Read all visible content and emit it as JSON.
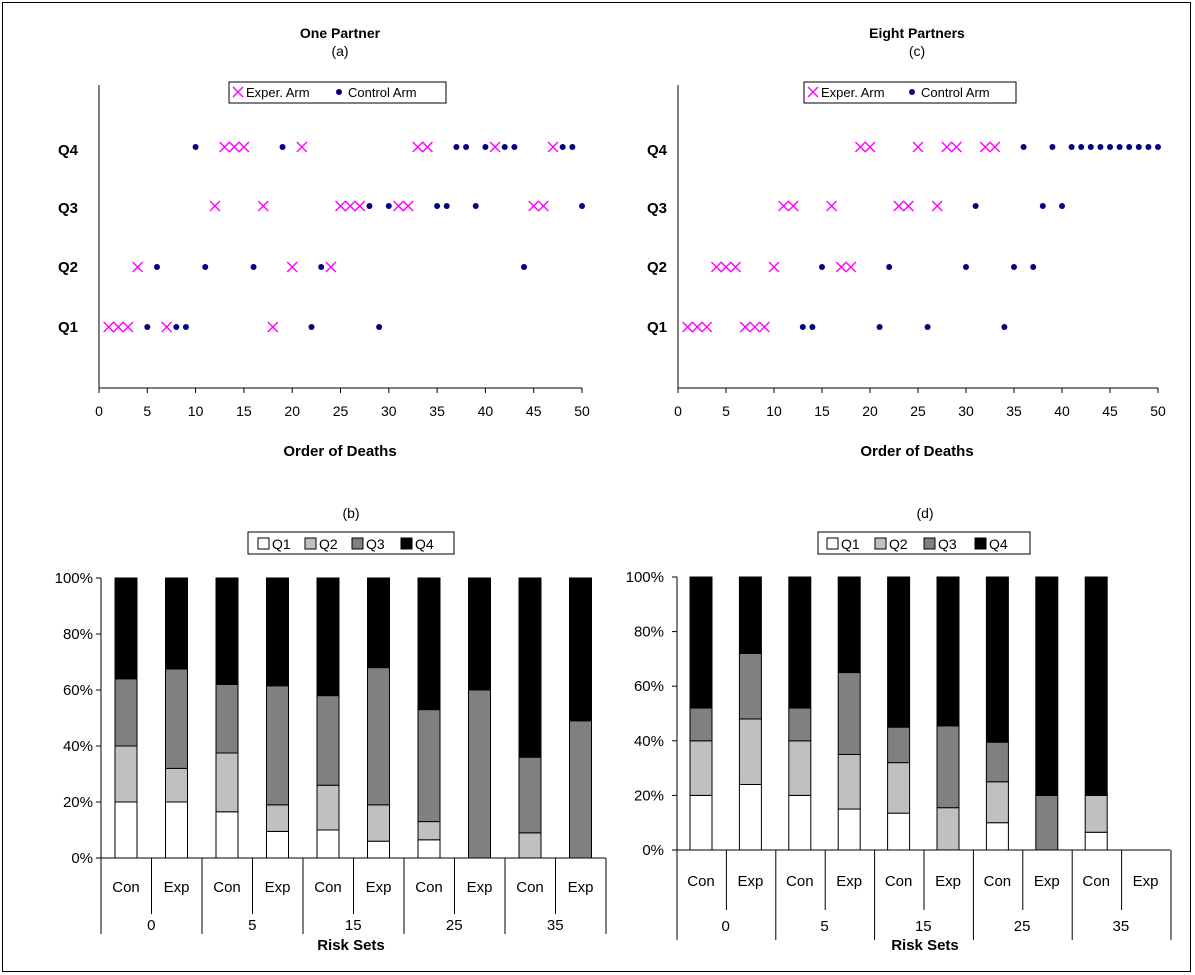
{
  "chart_data": [
    {
      "type": "scatter",
      "title": "One Partner",
      "subtitle": "(a)",
      "xlabel": "Order of Deaths",
      "ylabel": "",
      "xlim": [
        0,
        50
      ],
      "x_ticks": [
        "0",
        "5",
        "10",
        "15",
        "20",
        "25",
        "30",
        "35",
        "40",
        "45",
        "50"
      ],
      "categories": [
        "Q1",
        "Q2",
        "Q3",
        "Q4"
      ],
      "legend": "top",
      "series": [
        {
          "name": "Exper. Arm",
          "marker": "x",
          "color": "#ff00ff",
          "points": [
            {
              "x": 1,
              "y": "Q1"
            },
            {
              "x": 2,
              "y": "Q1"
            },
            {
              "x": 3,
              "y": "Q1"
            },
            {
              "x": 7,
              "y": "Q1"
            },
            {
              "x": 18,
              "y": "Q1"
            },
            {
              "x": 4,
              "y": "Q2"
            },
            {
              "x": 20,
              "y": "Q2"
            },
            {
              "x": 24,
              "y": "Q2"
            },
            {
              "x": 12,
              "y": "Q3"
            },
            {
              "x": 17,
              "y": "Q3"
            },
            {
              "x": 25,
              "y": "Q3"
            },
            {
              "x": 26,
              "y": "Q3"
            },
            {
              "x": 27,
              "y": "Q3"
            },
            {
              "x": 31,
              "y": "Q3"
            },
            {
              "x": 32,
              "y": "Q3"
            },
            {
              "x": 45,
              "y": "Q3"
            },
            {
              "x": 46,
              "y": "Q3"
            },
            {
              "x": 13,
              "y": "Q4"
            },
            {
              "x": 14,
              "y": "Q4"
            },
            {
              "x": 15,
              "y": "Q4"
            },
            {
              "x": 21,
              "y": "Q4"
            },
            {
              "x": 33,
              "y": "Q4"
            },
            {
              "x": 34,
              "y": "Q4"
            },
            {
              "x": 41,
              "y": "Q4"
            },
            {
              "x": 47,
              "y": "Q4"
            }
          ]
        },
        {
          "name": "Control Arm",
          "marker": "dot",
          "color": "#000080",
          "points": [
            {
              "x": 5,
              "y": "Q1"
            },
            {
              "x": 8,
              "y": "Q1"
            },
            {
              "x": 9,
              "y": "Q1"
            },
            {
              "x": 22,
              "y": "Q1"
            },
            {
              "x": 29,
              "y": "Q1"
            },
            {
              "x": 6,
              "y": "Q2"
            },
            {
              "x": 11,
              "y": "Q2"
            },
            {
              "x": 16,
              "y": "Q2"
            },
            {
              "x": 23,
              "y": "Q2"
            },
            {
              "x": 44,
              "y": "Q2"
            },
            {
              "x": 28,
              "y": "Q3"
            },
            {
              "x": 30,
              "y": "Q3"
            },
            {
              "x": 35,
              "y": "Q3"
            },
            {
              "x": 36,
              "y": "Q3"
            },
            {
              "x": 39,
              "y": "Q3"
            },
            {
              "x": 50,
              "y": "Q3"
            },
            {
              "x": 10,
              "y": "Q4"
            },
            {
              "x": 19,
              "y": "Q4"
            },
            {
              "x": 37,
              "y": "Q4"
            },
            {
              "x": 38,
              "y": "Q4"
            },
            {
              "x": 40,
              "y": "Q4"
            },
            {
              "x": 42,
              "y": "Q4"
            },
            {
              "x": 43,
              "y": "Q4"
            },
            {
              "x": 48,
              "y": "Q4"
            },
            {
              "x": 49,
              "y": "Q4"
            }
          ]
        }
      ]
    },
    {
      "type": "scatter",
      "title": "Eight Partners",
      "subtitle": "(c)",
      "xlabel": "Order of Deaths",
      "ylabel": "",
      "xlim": [
        0,
        50
      ],
      "x_ticks": [
        "0",
        "5",
        "10",
        "15",
        "20",
        "25",
        "30",
        "35",
        "40",
        "45",
        "50"
      ],
      "categories": [
        "Q1",
        "Q2",
        "Q3",
        "Q4"
      ],
      "legend": "top",
      "series": [
        {
          "name": "Exper. Arm",
          "marker": "x",
          "color": "#ff00ff",
          "points": [
            {
              "x": 1,
              "y": "Q1"
            },
            {
              "x": 2,
              "y": "Q1"
            },
            {
              "x": 3,
              "y": "Q1"
            },
            {
              "x": 7,
              "y": "Q1"
            },
            {
              "x": 8,
              "y": "Q1"
            },
            {
              "x": 9,
              "y": "Q1"
            },
            {
              "x": 4,
              "y": "Q2"
            },
            {
              "x": 5,
              "y": "Q2"
            },
            {
              "x": 6,
              "y": "Q2"
            },
            {
              "x": 10,
              "y": "Q2"
            },
            {
              "x": 17,
              "y": "Q2"
            },
            {
              "x": 18,
              "y": "Q2"
            },
            {
              "x": 11,
              "y": "Q3"
            },
            {
              "x": 12,
              "y": "Q3"
            },
            {
              "x": 16,
              "y": "Q3"
            },
            {
              "x": 23,
              "y": "Q3"
            },
            {
              "x": 24,
              "y": "Q3"
            },
            {
              "x": 27,
              "y": "Q3"
            },
            {
              "x": 19,
              "y": "Q4"
            },
            {
              "x": 20,
              "y": "Q4"
            },
            {
              "x": 25,
              "y": "Q4"
            },
            {
              "x": 28,
              "y": "Q4"
            },
            {
              "x": 29,
              "y": "Q4"
            },
            {
              "x": 32,
              "y": "Q4"
            },
            {
              "x": 33,
              "y": "Q4"
            }
          ]
        },
        {
          "name": "Control Arm",
          "marker": "dot",
          "color": "#000080",
          "points": [
            {
              "x": 13,
              "y": "Q1"
            },
            {
              "x": 14,
              "y": "Q1"
            },
            {
              "x": 21,
              "y": "Q1"
            },
            {
              "x": 26,
              "y": "Q1"
            },
            {
              "x": 34,
              "y": "Q1"
            },
            {
              "x": 15,
              "y": "Q2"
            },
            {
              "x": 22,
              "y": "Q2"
            },
            {
              "x": 30,
              "y": "Q2"
            },
            {
              "x": 35,
              "y": "Q2"
            },
            {
              "x": 37,
              "y": "Q2"
            },
            {
              "x": 31,
              "y": "Q3"
            },
            {
              "x": 38,
              "y": "Q3"
            },
            {
              "x": 40,
              "y": "Q3"
            },
            {
              "x": 36,
              "y": "Q4"
            },
            {
              "x": 39,
              "y": "Q4"
            },
            {
              "x": 41,
              "y": "Q4"
            },
            {
              "x": 42,
              "y": "Q4"
            },
            {
              "x": 43,
              "y": "Q4"
            },
            {
              "x": 44,
              "y": "Q4"
            },
            {
              "x": 45,
              "y": "Q4"
            },
            {
              "x": 46,
              "y": "Q4"
            },
            {
              "x": 47,
              "y": "Q4"
            },
            {
              "x": 48,
              "y": "Q4"
            },
            {
              "x": 49,
              "y": "Q4"
            },
            {
              "x": 50,
              "y": "Q4"
            }
          ]
        }
      ]
    },
    {
      "type": "bar",
      "stacked": true,
      "subtitle": "(b)",
      "xlabel": "Risk Sets",
      "ylabel": "",
      "ylim": [
        0,
        100
      ],
      "y_ticks": [
        "0%",
        "20%",
        "40%",
        "60%",
        "80%",
        "100%"
      ],
      "legend": "top",
      "groups": [
        "0",
        "5",
        "15",
        "25",
        "35"
      ],
      "categories": [
        "Con",
        "Exp",
        "Con",
        "Exp",
        "Con",
        "Exp",
        "Con",
        "Exp",
        "Con",
        "Exp"
      ],
      "series": [
        {
          "name": "Q1",
          "color": "#ffffff",
          "values": [
            20,
            20,
            16.5,
            9.5,
            10,
            6,
            6.5,
            0,
            0,
            0
          ]
        },
        {
          "name": "Q2",
          "color": "#c0c0c0",
          "values": [
            20,
            12,
            21,
            9.5,
            16,
            13,
            6.5,
            0,
            9,
            0
          ]
        },
        {
          "name": "Q3",
          "color": "#808080",
          "values": [
            24,
            35.5,
            24.5,
            42.5,
            32,
            49,
            40,
            60,
            27,
            49
          ]
        },
        {
          "name": "Q4",
          "color": "#000000",
          "values": [
            36,
            32.5,
            38,
            38.5,
            42,
            32,
            47,
            40,
            64,
            51
          ]
        }
      ]
    },
    {
      "type": "bar",
      "stacked": true,
      "subtitle": "(d)",
      "xlabel": "Risk Sets",
      "ylabel": "",
      "ylim": [
        0,
        100
      ],
      "y_ticks": [
        "0%",
        "20%",
        "40%",
        "60%",
        "80%",
        "100%"
      ],
      "legend": "top",
      "groups": [
        "0",
        "5",
        "15",
        "25",
        "35"
      ],
      "categories": [
        "Con",
        "Exp",
        "Con",
        "Exp",
        "Con",
        "Exp",
        "Con",
        "Exp",
        "Con",
        "Exp"
      ],
      "series": [
        {
          "name": "Q1",
          "color": "#ffffff",
          "values": [
            20,
            24,
            20,
            15,
            13.5,
            0,
            10,
            0,
            6.5,
            0
          ]
        },
        {
          "name": "Q2",
          "color": "#c0c0c0",
          "values": [
            20,
            24,
            20,
            20,
            18.5,
            15.5,
            15,
            0,
            13.5,
            0
          ]
        },
        {
          "name": "Q3",
          "color": "#808080",
          "values": [
            12,
            24,
            12,
            30,
            13,
            30,
            14.5,
            20,
            0,
            0
          ]
        },
        {
          "name": "Q4",
          "color": "#000000",
          "values": [
            48,
            28,
            48,
            35,
            55,
            54.5,
            60.5,
            80,
            80,
            0
          ]
        }
      ]
    }
  ]
}
